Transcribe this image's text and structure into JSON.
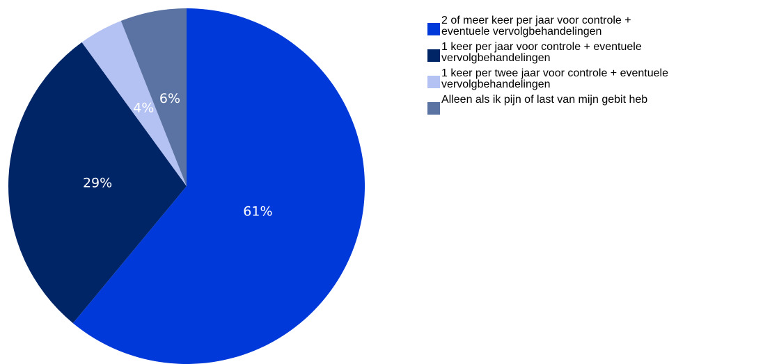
{
  "chart_data": {
    "type": "pie",
    "start": "top",
    "direction": "clockwise",
    "slices": [
      {
        "label": "2 of meer keer per jaar voor controle + eventuele vervolgbehandelingen",
        "legend_text": "2 of meer keer per jaar voor controle +\neventuele vervolgbehandelingen",
        "value": 61,
        "display": "61%",
        "color": "#0039d9"
      },
      {
        "label": "1 keer per jaar voor controle + eventuele vervolgbehandelingen",
        "legend_text": "1 keer per jaar voor controle + eventuele\nvervolgbehandelingen",
        "value": 29,
        "display": "29%",
        "color": "#002566"
      },
      {
        "label": "1 keer per twee jaar voor controle + eventuele vervolgbehandelingen",
        "legend_text": "1 keer per twee jaar voor controle + eventuele\nvervolgbehandelingen",
        "value": 4,
        "display": "4%",
        "color": "#b3c1f3"
      },
      {
        "label": "Alleen als ik pijn of last van mijn gebit heb",
        "legend_text": "Alleen als ik pijn of last van mijn gebit heb",
        "value": 6,
        "display": "6%",
        "color": "#5a73a3"
      }
    ],
    "legend_position": "right"
  }
}
